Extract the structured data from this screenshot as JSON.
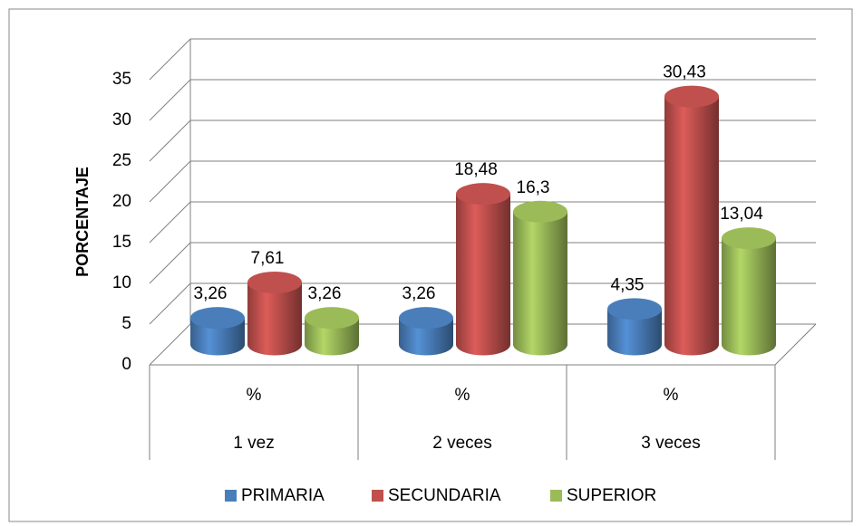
{
  "chart_data": {
    "type": "bar3d",
    "y_axis_label": "PORCENTAJE",
    "categories": [
      "1 vez",
      "2 veces",
      "3 veces"
    ],
    "category_units": [
      "%",
      "%",
      "%"
    ],
    "series": [
      {
        "name": "PRIMARIA",
        "color": "#4a7ebb",
        "values": [
          3.26,
          3.26,
          4.35
        ],
        "value_labels": [
          "3,26",
          "3,26",
          "4,35"
        ]
      },
      {
        "name": "SECUNDARIA",
        "color": "#c0504d",
        "values": [
          7.61,
          18.48,
          30.43
        ],
        "value_labels": [
          "7,61",
          "18,48",
          "30,43"
        ]
      },
      {
        "name": "SUPERIOR",
        "color": "#9bbb59",
        "values": [
          3.26,
          16.3,
          13.04
        ],
        "value_labels": [
          "3,26",
          "16,3",
          "13,04"
        ]
      }
    ],
    "ylim": [
      0,
      35
    ],
    "yticks": [
      0,
      5,
      10,
      15,
      20,
      25,
      30,
      35
    ],
    "grid": true,
    "legend": "bottom"
  }
}
